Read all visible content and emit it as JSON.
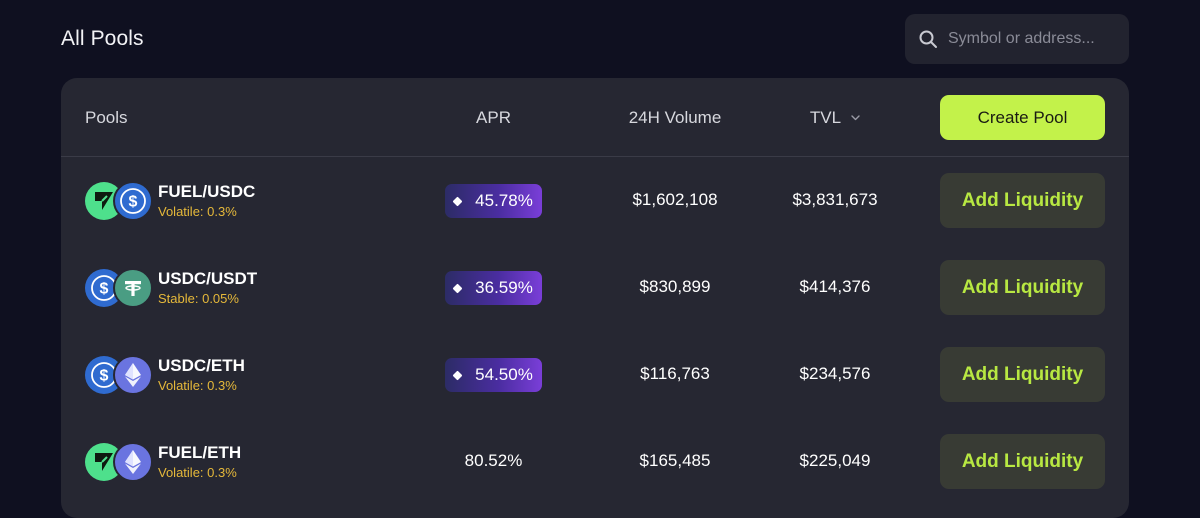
{
  "header": {
    "title": "All Pools",
    "search_placeholder": "Symbol or address..."
  },
  "table": {
    "columns": {
      "pools": "Pools",
      "apr": "APR",
      "volume": "24H Volume",
      "tvl": "TVL"
    },
    "create_label": "Create Pool",
    "rows": [
      {
        "pair": "FUEL/USDC",
        "fee": "Volatile: 0.3%",
        "apr": "45.78%",
        "apr_boosted": true,
        "volume": "$1,602,108",
        "tvl": "$3,831,673",
        "action": "Add Liquidity",
        "icons": [
          "fuel-icon",
          "usdc-icon"
        ]
      },
      {
        "pair": "USDC/USDT",
        "fee": "Stable: 0.05%",
        "apr": "36.59%",
        "apr_boosted": true,
        "volume": "$830,899",
        "tvl": "$414,376",
        "action": "Add Liquidity",
        "icons": [
          "usdc-icon",
          "usdt-icon"
        ]
      },
      {
        "pair": "USDC/ETH",
        "fee": "Volatile: 0.3%",
        "apr": "54.50%",
        "apr_boosted": true,
        "volume": "$116,763",
        "tvl": "$234,576",
        "action": "Add Liquidity",
        "icons": [
          "usdc-icon",
          "eth-icon"
        ]
      },
      {
        "pair": "FUEL/ETH",
        "fee": "Volatile: 0.3%",
        "apr": "80.52%",
        "apr_boosted": false,
        "volume": "$165,485",
        "tvl": "$225,049",
        "action": "Add Liquidity",
        "icons": [
          "fuel-icon",
          "eth-icon"
        ]
      }
    ]
  },
  "colors": {
    "background": "#0f1020",
    "panel": "#262732",
    "accent": "#c3f24a",
    "fee_text": "#e5b83a",
    "fuel": "#4ee08c",
    "usdc": "#2f6bd0",
    "usdt": "#4a9d83",
    "eth": "#6a74e0"
  }
}
